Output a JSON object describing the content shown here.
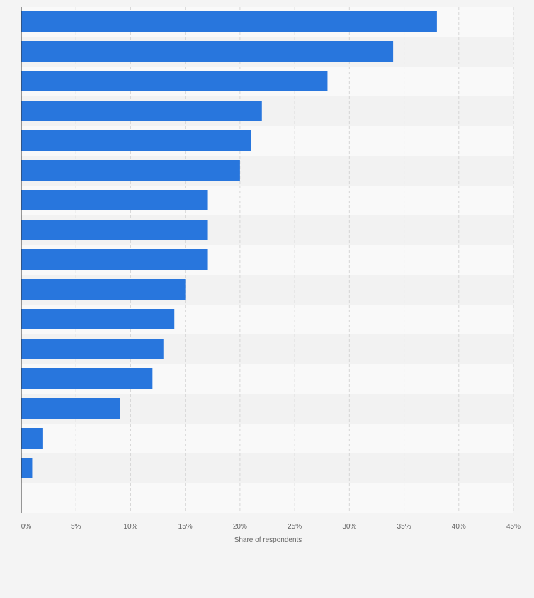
{
  "chart_data": {
    "type": "bar",
    "orientation": "horizontal",
    "categories": [
      "",
      "",
      "",
      "",
      "",
      "",
      "",
      "",
      "",
      "",
      "",
      "",
      "",
      "",
      "",
      "",
      ""
    ],
    "values": [
      38,
      34,
      28,
      22,
      21,
      20,
      17,
      17,
      17,
      15,
      14,
      13,
      12,
      9,
      2,
      1,
      0
    ],
    "unit": "%",
    "title": "",
    "xlabel": "Share of respondents",
    "ylabel": "",
    "xlim": [
      0,
      45
    ],
    "xticks": [
      0,
      5,
      10,
      15,
      20,
      25,
      30,
      35,
      40,
      45
    ],
    "tick_labels": [
      "0%",
      "5%",
      "10%",
      "15%",
      "20%",
      "25%",
      "30%",
      "35%",
      "40%",
      "45%"
    ],
    "grid": "vertical dashed",
    "legend": "none",
    "colors": {
      "bar": "#2876dd",
      "band_light": "#f9f9f9",
      "band_dark": "#f2f2f2",
      "page_background": "#f4f4f4",
      "grid": "#d6d6d6",
      "axis": "#333333",
      "tick_text": "#666666"
    }
  }
}
